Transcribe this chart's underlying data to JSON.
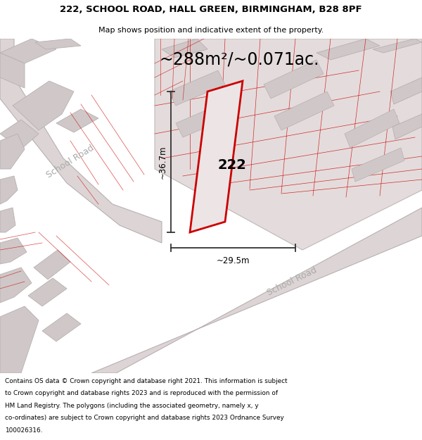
{
  "title_line1": "222, SCHOOL ROAD, HALL GREEN, BIRMINGHAM, B28 8PF",
  "title_line2": "Map shows position and indicative extent of the property.",
  "area_text": "~288m²/~0.071ac.",
  "label_222": "222",
  "dim_vertical": "~36.7m",
  "dim_horizontal": "~29.5m",
  "road_label_top": "School Road",
  "road_label_bottom": "School Road",
  "footer_lines": [
    "Contains OS data © Crown copyright and database right 2021. This information is subject",
    "to Crown copyright and database rights 2023 and is reproduced with the permission of",
    "HM Land Registry. The polygons (including the associated geometry, namely x, y",
    "co-ordinates) are subject to Crown copyright and database rights 2023 Ordnance Survey",
    "100026316."
  ],
  "map_bg": "#f2eded",
  "plot_fill_light": "#e4dcdc",
  "plot_fill_dark": "#d0c8c8",
  "red_color": "#cc0000",
  "gray_edge": "#b8b0b0",
  "red_edge": "#e08080",
  "road_fill": "#ddd5d5",
  "prop_fill": "#ede5e5",
  "white": "#ffffff",
  "dim_color": "#333333"
}
